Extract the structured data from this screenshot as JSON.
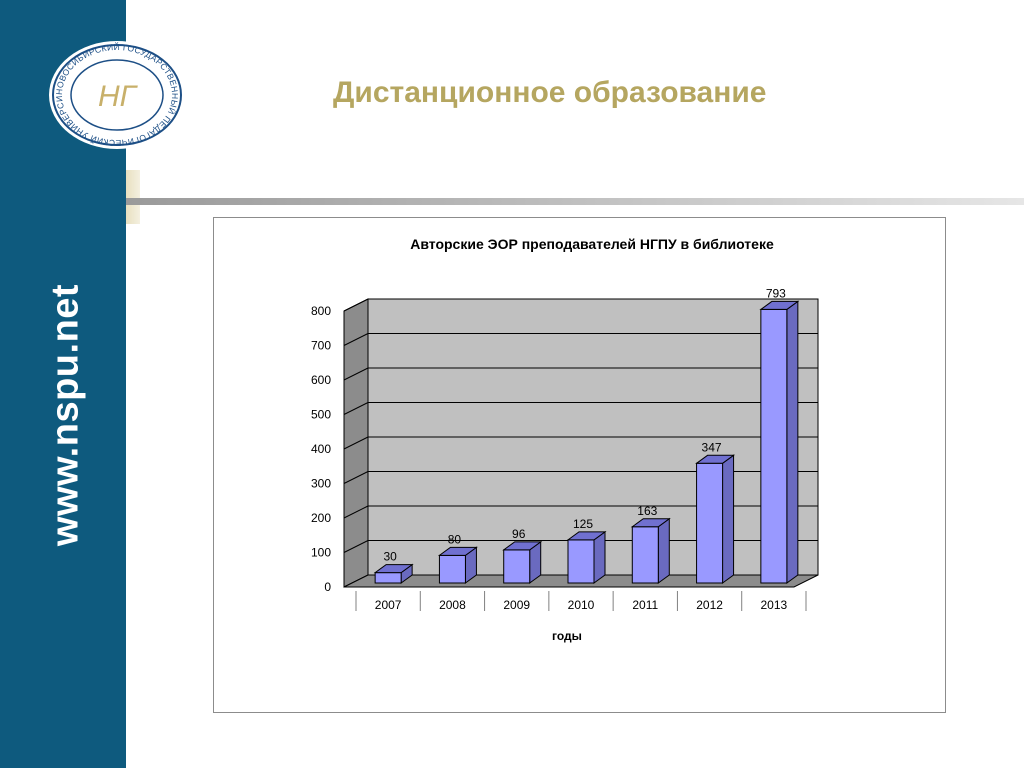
{
  "sidebar": {
    "url": "www.nspu.net",
    "background_color": "#0e5a7e",
    "logo": {
      "text": "НОВОСИБИРСКИЙ ГОСУДАРСТВЕННЫЙ ПЕДАГОГИЧЕСКИЙ УНИВЕРСИТЕТ",
      "monogram": "НГ"
    }
  },
  "slide": {
    "title": "Дистанционное образование",
    "title_color": "#b5a660"
  },
  "chart_data": {
    "type": "bar",
    "title": "Авторские ЭОР преподавателей НГПУ в библиотеке",
    "xlabel": "годы",
    "ylabel": "",
    "categories": [
      "2007",
      "2008",
      "2009",
      "2010",
      "2011",
      "2012",
      "2013"
    ],
    "values": [
      30,
      80,
      96,
      125,
      163,
      347,
      793
    ],
    "data_labels": [
      "30",
      "80",
      "96",
      "125",
      "163",
      "347",
      "793"
    ],
    "ylim": [
      0,
      800
    ],
    "yticks": [
      "0",
      "100",
      "200",
      "300",
      "400",
      "500",
      "600",
      "700",
      "800"
    ],
    "grid": true,
    "legend": "none",
    "style": "3d",
    "bar_color": "#9999ff",
    "plot_background": "#c0c0c0"
  }
}
